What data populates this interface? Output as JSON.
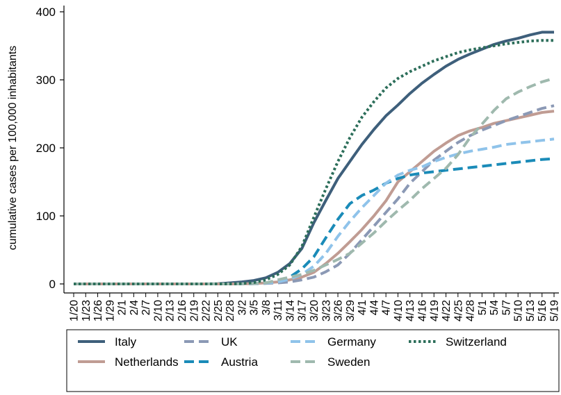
{
  "chart_data": {
    "type": "line",
    "title": "",
    "xlabel": "",
    "ylabel": "cumulative cases per 100,000 inhabitants",
    "ylim": [
      0,
      400
    ],
    "yticks": [
      0,
      100,
      200,
      300,
      400
    ],
    "grid": false,
    "legend_position": "bottom",
    "x_tick_labels": [
      "1/20",
      "1/23",
      "1/26",
      "1/29",
      "2/1",
      "2/4",
      "2/7",
      "2/10",
      "2/13",
      "2/16",
      "2/19",
      "2/22",
      "2/25",
      "2/28",
      "3/2",
      "3/5",
      "3/8",
      "3/11",
      "3/14",
      "3/17",
      "3/20",
      "3/23",
      "3/26",
      "3/29",
      "4/1",
      "4/4",
      "4/7",
      "4/10",
      "4/13",
      "4/16",
      "4/19",
      "4/22",
      "4/25",
      "4/28",
      "5/1",
      "5/4",
      "5/7",
      "5/10",
      "5/13",
      "5/16",
      "5/19"
    ],
    "x": [
      "1/20",
      "1/23",
      "1/26",
      "1/29",
      "2/1",
      "2/4",
      "2/7",
      "2/10",
      "2/13",
      "2/16",
      "2/19",
      "2/22",
      "2/25",
      "2/28",
      "3/2",
      "3/5",
      "3/8",
      "3/11",
      "3/14",
      "3/17",
      "3/20",
      "3/23",
      "3/26",
      "3/29",
      "4/1",
      "4/4",
      "4/7",
      "4/10",
      "4/13",
      "4/16",
      "4/19",
      "4/22",
      "4/25",
      "4/28",
      "5/1",
      "5/4",
      "5/7",
      "5/10",
      "5/13",
      "5/16",
      "5/19"
    ],
    "series": [
      {
        "name": "Italy",
        "color": "#3e5f7b",
        "dash": "solid",
        "values": [
          0,
          0,
          0,
          0,
          0,
          0,
          0,
          0,
          0,
          0,
          0,
          0,
          0.3,
          1.5,
          3,
          5,
          9,
          17,
          30,
          52,
          90,
          123,
          155,
          180,
          205,
          227,
          247,
          263,
          280,
          295,
          308,
          320,
          330,
          338,
          345,
          352,
          357,
          361,
          366,
          370,
          370
        ]
      },
      {
        "name": "Netherlands",
        "color": "#c09c93",
        "dash": "solid",
        "values": [
          0,
          0,
          0,
          0,
          0,
          0,
          0,
          0,
          0,
          0,
          0,
          0,
          0,
          0,
          0.1,
          0.5,
          1.5,
          3,
          6,
          10,
          17,
          30,
          45,
          62,
          80,
          100,
          122,
          150,
          165,
          180,
          195,
          207,
          218,
          225,
          230,
          236,
          240,
          244,
          248,
          252,
          254
        ]
      },
      {
        "name": "UK",
        "color": "#8b99b5",
        "dash": "dash",
        "values": [
          0,
          0,
          0,
          0,
          0,
          0,
          0,
          0,
          0,
          0,
          0,
          0,
          0,
          0,
          0,
          0.2,
          0.7,
          1.5,
          3,
          6,
          10,
          18,
          28,
          45,
          65,
          85,
          105,
          125,
          148,
          165,
          182,
          195,
          208,
          218,
          226,
          233,
          240,
          246,
          252,
          258,
          262
        ]
      },
      {
        "name": "Austria",
        "color": "#1a8bb8",
        "dash": "dash",
        "values": [
          0,
          0,
          0,
          0,
          0,
          0,
          0,
          0,
          0,
          0,
          0,
          0,
          0,
          0,
          0,
          0.5,
          1.5,
          4,
          10,
          22,
          40,
          68,
          95,
          118,
          130,
          138,
          148,
          155,
          160,
          163,
          165,
          167,
          169,
          171,
          173,
          175,
          177,
          179,
          181,
          183,
          184
        ]
      },
      {
        "name": "Germany",
        "color": "#8fc3ea",
        "dash": "dash",
        "values": [
          0,
          0,
          0,
          0,
          0,
          0,
          0,
          0,
          0,
          0,
          0,
          0,
          0,
          0,
          0.1,
          0.5,
          1.2,
          3,
          7,
          14,
          26,
          45,
          70,
          92,
          112,
          130,
          148,
          160,
          167,
          172,
          180,
          186,
          191,
          195,
          198,
          201,
          205,
          207,
          209,
          211,
          213
        ]
      },
      {
        "name": "Sweden",
        "color": "#9fb9ae",
        "dash": "dash",
        "values": [
          0,
          0,
          0,
          0,
          0,
          0,
          0,
          0,
          0,
          0,
          0,
          0,
          0,
          0,
          0.1,
          0.5,
          1.5,
          6,
          10,
          14,
          20,
          28,
          36,
          45,
          60,
          75,
          92,
          108,
          123,
          140,
          155,
          170,
          190,
          215,
          235,
          255,
          272,
          282,
          290,
          297,
          302
        ]
      },
      {
        "name": "Switzerland",
        "color": "#2c6e5a",
        "dash": "dot",
        "values": [
          0,
          0,
          0,
          0,
          0,
          0,
          0,
          0,
          0,
          0,
          0,
          0,
          0,
          0,
          0.5,
          2,
          6,
          14,
          28,
          55,
          98,
          140,
          180,
          215,
          245,
          268,
          288,
          302,
          312,
          320,
          328,
          334,
          340,
          344,
          347,
          350,
          353,
          355,
          357,
          358,
          358
        ]
      }
    ]
  },
  "legend": {
    "items": [
      "Italy",
      "UK",
      "Germany",
      "Switzerland",
      "Netherlands",
      "Austria",
      "Sweden"
    ]
  }
}
